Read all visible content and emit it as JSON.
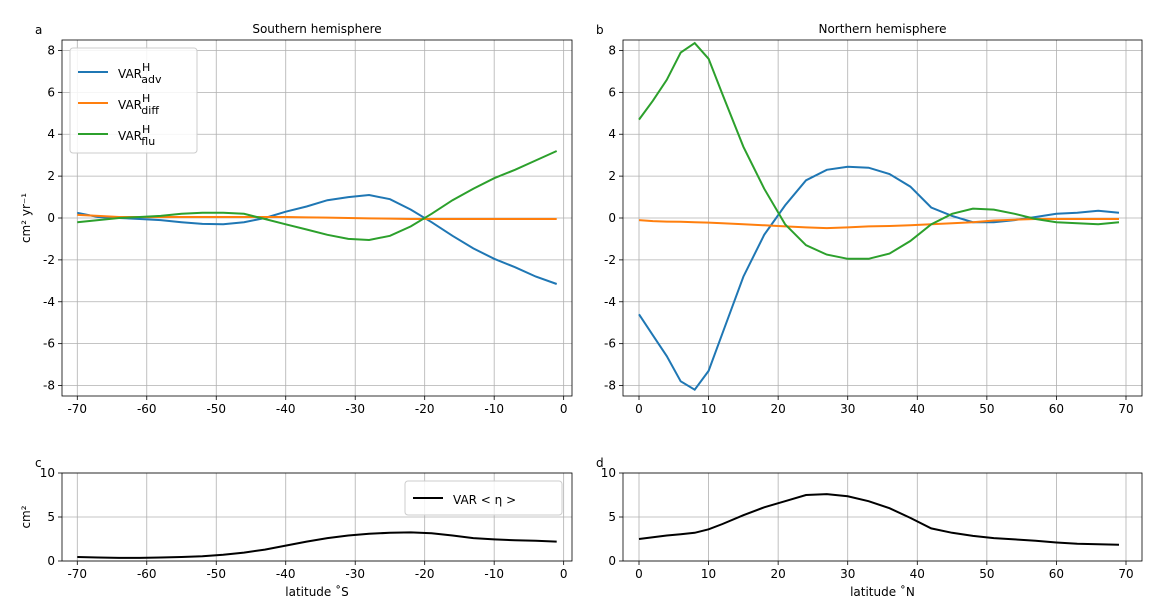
{
  "chart_data": [
    {
      "type": "line",
      "panel_label": "a",
      "title": "Southern hemisphere",
      "ylabel": "cm² yr⁻¹",
      "x": [
        -70,
        -67,
        -64,
        -61,
        -58,
        -55,
        -52,
        -49,
        -46,
        -43,
        -40,
        -37,
        -34,
        -31,
        -28,
        -25,
        -22,
        -19,
        -16,
        -13,
        -10,
        -7,
        -4,
        -1
      ],
      "series": [
        {
          "name": "VAR",
          "superscript": "H",
          "subscript": "adv",
          "color": "#1f77b4",
          "values": [
            0.25,
            0.05,
            0,
            -0.05,
            -0.1,
            -0.2,
            -0.28,
            -0.3,
            -0.2,
            0,
            0.3,
            0.55,
            0.85,
            1.0,
            1.1,
            0.9,
            0.4,
            -0.2,
            -0.85,
            -1.45,
            -1.95,
            -2.35,
            -2.8,
            -3.15
          ]
        },
        {
          "name": "VAR",
          "superscript": "H",
          "subscript": "diff",
          "color": "#ff7f0e",
          "values": [
            0.15,
            0.1,
            0.05,
            0.05,
            0.05,
            0.05,
            0.05,
            0.05,
            0.05,
            0.05,
            0.05,
            0.03,
            0.02,
            0,
            -0.02,
            -0.03,
            -0.05,
            -0.05,
            -0.05,
            -0.05,
            -0.05,
            -0.05,
            -0.05,
            -0.05
          ]
        },
        {
          "name": "VAR",
          "superscript": "H",
          "subscript": "flu",
          "color": "#2ca02c",
          "values": [
            -0.2,
            -0.1,
            0,
            0.05,
            0.1,
            0.2,
            0.25,
            0.25,
            0.2,
            -0.05,
            -0.3,
            -0.55,
            -0.8,
            -1.0,
            -1.05,
            -0.85,
            -0.4,
            0.2,
            0.85,
            1.4,
            1.9,
            2.3,
            2.75,
            3.2
          ]
        }
      ],
      "xlim": [
        -72.2,
        1.2
      ],
      "ylim": [
        -8.5,
        8.5
      ],
      "xticks": [
        -70,
        -60,
        -50,
        -40,
        -30,
        -20,
        -10,
        0
      ],
      "yticks": [
        -8,
        -6,
        -4,
        -2,
        0,
        2,
        4,
        6,
        8
      ],
      "grid": true,
      "legend": "upper left"
    },
    {
      "type": "line",
      "panel_label": "b",
      "title": "Northern hemisphere",
      "x": [
        0,
        2,
        4,
        6,
        8,
        10,
        12,
        15,
        18,
        21,
        24,
        27,
        30,
        33,
        36,
        39,
        42,
        45,
        48,
        51,
        54,
        57,
        60,
        63,
        66,
        69
      ],
      "series": [
        {
          "color": "#1f77b4",
          "values": [
            -4.6,
            -5.6,
            -6.6,
            -7.8,
            -8.2,
            -7.3,
            -5.5,
            -2.8,
            -0.8,
            0.6,
            1.8,
            2.3,
            2.45,
            2.4,
            2.1,
            1.5,
            0.5,
            0.1,
            -0.2,
            -0.2,
            -0.1,
            0.05,
            0.2,
            0.25,
            0.35,
            0.25
          ]
        },
        {
          "color": "#ff7f0e",
          "values": [
            -0.1,
            -0.15,
            -0.17,
            -0.18,
            -0.2,
            -0.22,
            -0.25,
            -0.3,
            -0.35,
            -0.4,
            -0.45,
            -0.48,
            -0.45,
            -0.4,
            -0.38,
            -0.35,
            -0.3,
            -0.25,
            -0.2,
            -0.12,
            -0.08,
            -0.05,
            -0.05,
            -0.05,
            -0.05,
            -0.05
          ]
        },
        {
          "color": "#2ca02c",
          "values": [
            4.7,
            5.6,
            6.6,
            7.9,
            8.35,
            7.6,
            5.9,
            3.4,
            1.4,
            -0.3,
            -1.3,
            -1.75,
            -1.95,
            -1.95,
            -1.7,
            -1.1,
            -0.3,
            0.2,
            0.45,
            0.4,
            0.2,
            -0.05,
            -0.2,
            -0.25,
            -0.3,
            -0.2
          ]
        }
      ],
      "xlim": [
        -2.3,
        72.3
      ],
      "ylim": [
        -8.5,
        8.5
      ],
      "xticks": [
        0,
        10,
        20,
        30,
        40,
        50,
        60,
        70
      ],
      "yticks": [
        -8,
        -6,
        -4,
        -2,
        0,
        2,
        4,
        6,
        8
      ],
      "grid": true
    },
    {
      "type": "line",
      "panel_label": "c",
      "ylabel": "cm²",
      "xlabel": "latitude ˚S",
      "x": [
        -70,
        -67,
        -64,
        -61,
        -58,
        -55,
        -52,
        -49,
        -46,
        -43,
        -40,
        -37,
        -34,
        -31,
        -28,
        -25,
        -22,
        -19,
        -16,
        -13,
        -10,
        -7,
        -4,
        -1
      ],
      "series": [
        {
          "name": "VAR < η >",
          "color": "#000000",
          "values": [
            0.45,
            0.4,
            0.35,
            0.35,
            0.4,
            0.45,
            0.55,
            0.7,
            0.95,
            1.3,
            1.75,
            2.2,
            2.6,
            2.9,
            3.1,
            3.2,
            3.25,
            3.15,
            2.9,
            2.6,
            2.45,
            2.35,
            2.3,
            2.2
          ]
        }
      ],
      "xlim": [
        -72.2,
        1.2
      ],
      "ylim": [
        0,
        10
      ],
      "xticks": [
        -70,
        -60,
        -50,
        -40,
        -30,
        -20,
        -10,
        0
      ],
      "yticks": [
        0,
        5,
        10
      ],
      "grid": true,
      "legend": "upper right"
    },
    {
      "type": "line",
      "panel_label": "d",
      "xlabel": "latitude ˚N",
      "x": [
        0,
        2,
        4,
        6,
        8,
        10,
        12,
        15,
        18,
        21,
        24,
        27,
        30,
        33,
        36,
        39,
        42,
        45,
        48,
        51,
        54,
        57,
        60,
        63,
        66,
        69
      ],
      "series": [
        {
          "color": "#000000",
          "values": [
            2.5,
            2.7,
            2.9,
            3.05,
            3.2,
            3.6,
            4.2,
            5.2,
            6.1,
            6.8,
            7.5,
            7.6,
            7.35,
            6.8,
            6.0,
            4.9,
            3.7,
            3.2,
            2.85,
            2.6,
            2.45,
            2.3,
            2.1,
            1.95,
            1.9,
            1.85
          ]
        }
      ],
      "xlim": [
        -2.3,
        72.3
      ],
      "ylim": [
        0,
        10
      ],
      "xticks": [
        0,
        10,
        20,
        30,
        40,
        50,
        60,
        70
      ],
      "yticks": [
        0,
        5,
        10
      ],
      "grid": true
    }
  ]
}
